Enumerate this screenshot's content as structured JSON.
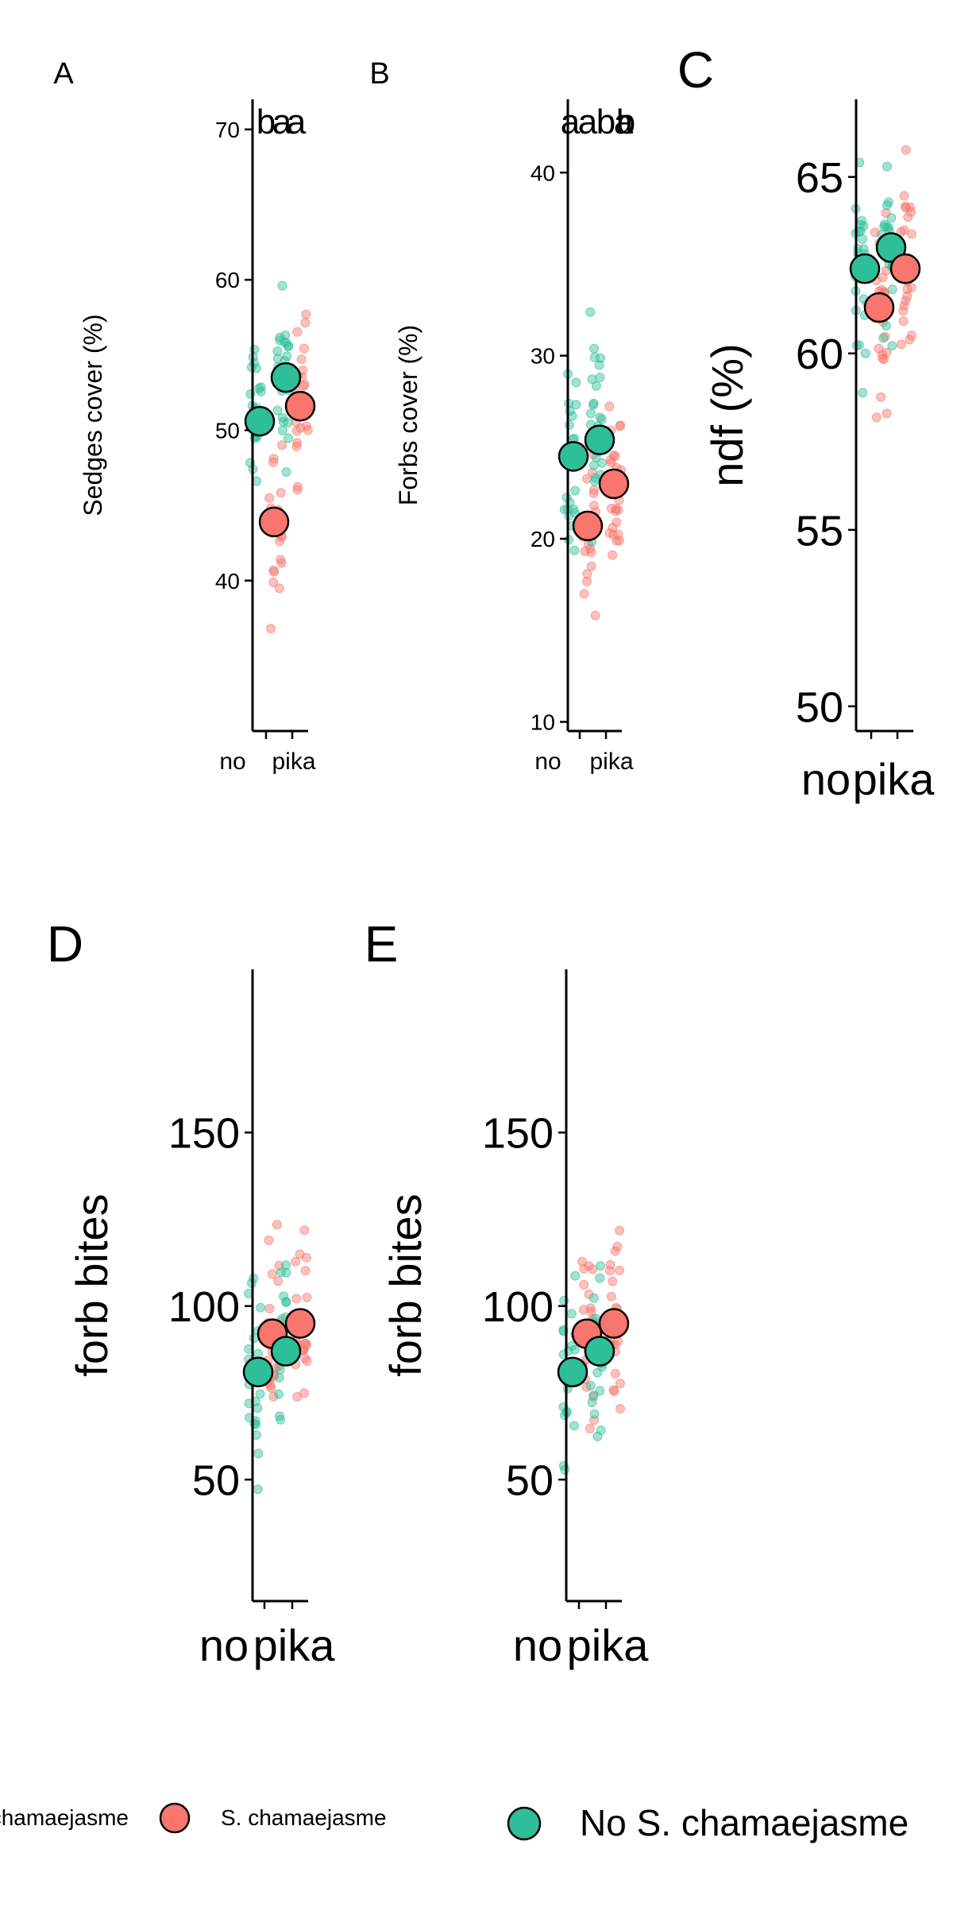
{
  "figure": {
    "legend_small": {
      "items": [
        {
          "label": "No S. chamaejasme",
          "color": "#2EBF99"
        },
        {
          "label": "S. chamaejasme",
          "color": "#F8766D"
        }
      ]
    },
    "legend_large": {
      "items": [
        {
          "label": "No S. chamaejasme",
          "color": "#2EBF99"
        }
      ]
    }
  },
  "colors": {
    "no_sc": "#2EBF99",
    "sc": "#F8766D",
    "axis": "#000000"
  },
  "chart_data": [
    {
      "panel": "A",
      "type": "scatter",
      "ylabel": "Sedges cover (%)",
      "categories": [
        "no",
        "pika"
      ],
      "yticks": [
        40,
        50,
        60,
        70
      ],
      "ylim": [
        30,
        72
      ],
      "letters": [
        "b",
        "a",
        "a"
      ],
      "groups": [
        {
          "series": "No S. chamaejasme",
          "category": "no",
          "mean": 50.6
        },
        {
          "series": "S. chamaejasme",
          "category": "no",
          "mean": 43.9
        },
        {
          "series": "No S. chamaejasme",
          "category": "pika",
          "mean": 53.5
        },
        {
          "series": "S. chamaejasme",
          "category": "pika",
          "mean": 51.6
        }
      ]
    },
    {
      "panel": "B",
      "type": "scatter",
      "ylabel": "Forbs cover (%)",
      "categories": [
        "no",
        "pika"
      ],
      "yticks": [
        10,
        20,
        30,
        40
      ],
      "ylim": [
        9.5,
        44
      ],
      "letters": [
        "a",
        "a",
        "b",
        "a",
        "b"
      ],
      "groups": [
        {
          "series": "No S. chamaejasme",
          "category": "no",
          "mean": 24.5
        },
        {
          "series": "S. chamaejasme",
          "category": "no",
          "mean": 20.7
        },
        {
          "series": "No S. chamaejasme",
          "category": "pika",
          "mean": 25.4
        },
        {
          "series": "S. chamaejasme",
          "category": "pika",
          "mean": 23.0
        }
      ]
    },
    {
      "panel": "C",
      "type": "scatter",
      "ylabel": "ndf (%)",
      "categories": [
        "no",
        "pika"
      ],
      "yticks": [
        50,
        55,
        60,
        65
      ],
      "ylim": [
        49.3,
        67.2
      ],
      "letters": [],
      "groups": [
        {
          "series": "No S. chamaejasme",
          "category": "no",
          "mean": 62.4
        },
        {
          "series": "S. chamaejasme",
          "category": "no",
          "mean": 61.3
        },
        {
          "series": "No S. chamaejasme",
          "category": "pika",
          "mean": 63.0
        },
        {
          "series": "S. chamaejasme",
          "category": "pika",
          "mean": 62.4
        }
      ]
    },
    {
      "panel": "D",
      "type": "scatter",
      "ylabel": "forb bites",
      "categories": [
        "no",
        "pika"
      ],
      "yticks": [
        50,
        100,
        150
      ],
      "ylim": [
        15,
        197
      ],
      "letters": [],
      "groups": [
        {
          "series": "No S. chamaejasme",
          "category": "no",
          "mean": 81
        },
        {
          "series": "S. chamaejasme",
          "category": "no",
          "mean": 92
        },
        {
          "series": "No S. chamaejasme",
          "category": "pika",
          "mean": 87
        },
        {
          "series": "S. chamaejasme",
          "category": "pika",
          "mean": 95
        }
      ]
    },
    {
      "panel": "E",
      "type": "scatter",
      "ylabel": "forb bites",
      "categories": [
        "no",
        "pika"
      ],
      "yticks": [
        50,
        100,
        150
      ],
      "ylim": [
        15,
        197
      ],
      "letters": [],
      "groups": [
        {
          "series": "No S. chamaejasme",
          "category": "no",
          "mean": 81
        },
        {
          "series": "S. chamaejasme",
          "category": "no",
          "mean": 92
        },
        {
          "series": "No S. chamaejasme",
          "category": "pika",
          "mean": 87
        },
        {
          "series": "S. chamaejasme",
          "category": "pika",
          "mean": 95
        }
      ]
    }
  ]
}
